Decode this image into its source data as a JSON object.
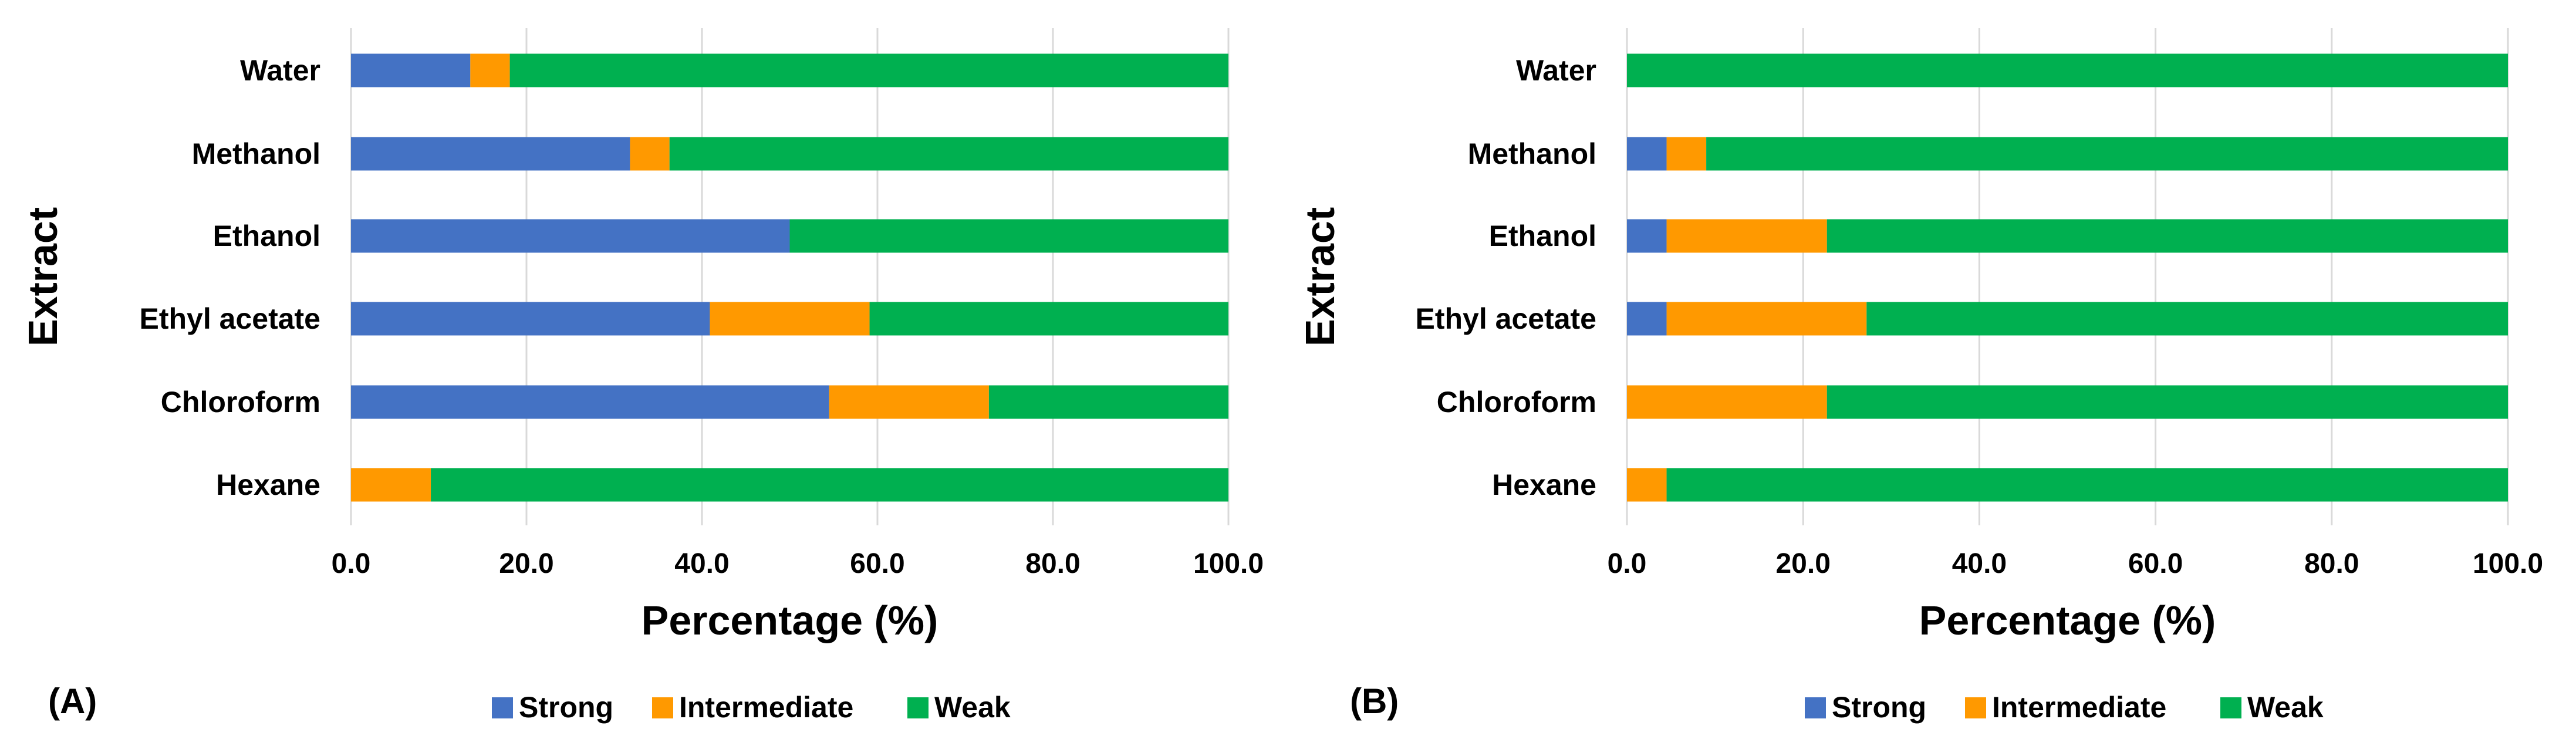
{
  "colors": {
    "strong": "#4472C4",
    "intermediate": "#FF9900",
    "weak": "#00B050",
    "grid": "#D9D9D9",
    "text": "#000000"
  },
  "chart_data": [
    {
      "type": "bar",
      "orientation": "horizontal",
      "stacked": true,
      "panel_label": "(A)",
      "categories": [
        "Water",
        "Methanol",
        "Ethanol",
        "Ethyl acetate",
        "Chloroform",
        "Hexane"
      ],
      "series": [
        {
          "name": "Strong",
          "color": "#4472C4",
          "values": [
            13.6,
            31.8,
            50.0,
            40.9,
            54.5,
            0.0
          ]
        },
        {
          "name": "Intermediate",
          "color": "#FF9900",
          "values": [
            4.5,
            4.5,
            0.0,
            18.2,
            18.2,
            9.1
          ]
        },
        {
          "name": "Weak",
          "color": "#00B050",
          "values": [
            81.9,
            63.7,
            50.0,
            40.9,
            27.3,
            90.9
          ]
        }
      ],
      "xlabel": "Percentage (%)",
      "ylabel": "Extract",
      "xlim": [
        0,
        100
      ],
      "xticks": [
        "0.0",
        "20.0",
        "40.0",
        "60.0",
        "80.0",
        "100.0"
      ],
      "grid": true,
      "legend_position": "bottom",
      "legend": [
        "Strong",
        "Intermediate",
        "Weak"
      ]
    },
    {
      "type": "bar",
      "orientation": "horizontal",
      "stacked": true,
      "panel_label": "(B)",
      "categories": [
        "Water",
        "Methanol",
        "Ethanol",
        "Ethyl acetate",
        "Chloroform",
        "Hexane"
      ],
      "series": [
        {
          "name": "Strong",
          "color": "#4472C4",
          "values": [
            0.0,
            4.5,
            4.5,
            4.5,
            0.0,
            0.0
          ]
        },
        {
          "name": "Intermediate",
          "color": "#FF9900",
          "values": [
            0.0,
            4.5,
            18.2,
            22.7,
            22.7,
            4.5
          ]
        },
        {
          "name": "Weak",
          "color": "#00B050",
          "values": [
            100.0,
            91.0,
            77.3,
            72.8,
            77.3,
            95.5
          ]
        }
      ],
      "xlabel": "Percentage (%)",
      "ylabel": "Extract",
      "xlim": [
        0,
        100
      ],
      "xticks": [
        "0.0",
        "20.0",
        "40.0",
        "60.0",
        "80.0",
        "100.0"
      ],
      "grid": true,
      "legend_position": "bottom",
      "legend": [
        "Strong",
        "Intermediate",
        "Weak"
      ]
    }
  ]
}
